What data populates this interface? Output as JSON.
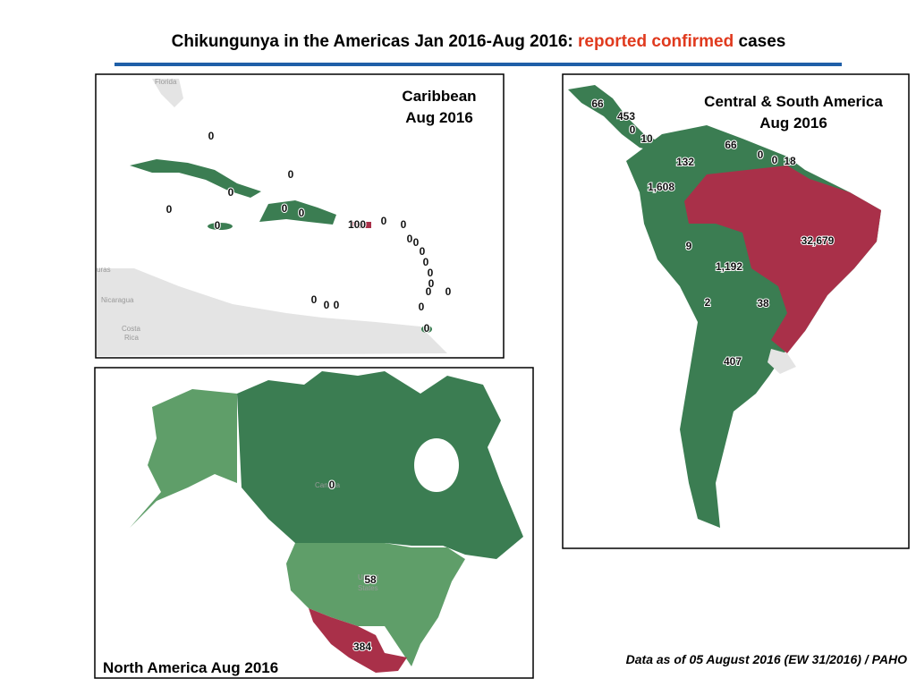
{
  "title": {
    "lead": "Chikungunya in the Americas Jan 2016-Aug 2016:",
    "highlight": "reported confirmed",
    "tail": "cases"
  },
  "caribbean": {
    "title": [
      "Caribbean",
      "Aug 2016"
    ],
    "places": [
      "Florida",
      "uras",
      "Nicaragua",
      "Costa",
      "Rica"
    ],
    "labels": [
      "0",
      "0",
      "0",
      "0",
      "0",
      "0",
      "0",
      "100",
      "0",
      "0",
      "0",
      "0",
      "0",
      "0",
      "0",
      "0",
      "0",
      "0",
      "0",
      "0",
      "0",
      "0",
      "0"
    ]
  },
  "central_south": {
    "title": [
      "Central & South America",
      "Aug 2016"
    ],
    "labels": [
      "66",
      "453",
      "0",
      "10",
      "66",
      "0",
      "0",
      "18",
      "132",
      "1,608",
      "32,679",
      "9",
      "1,192",
      "2",
      "38",
      "407"
    ]
  },
  "north_america": {
    "title": "North America Aug 2016",
    "places": [
      "Canada",
      "United",
      "States"
    ],
    "labels": [
      "0",
      "58",
      "384"
    ]
  },
  "footnote": "Data as of 05 August 2016 (EW 31/2016) / PAHO"
}
